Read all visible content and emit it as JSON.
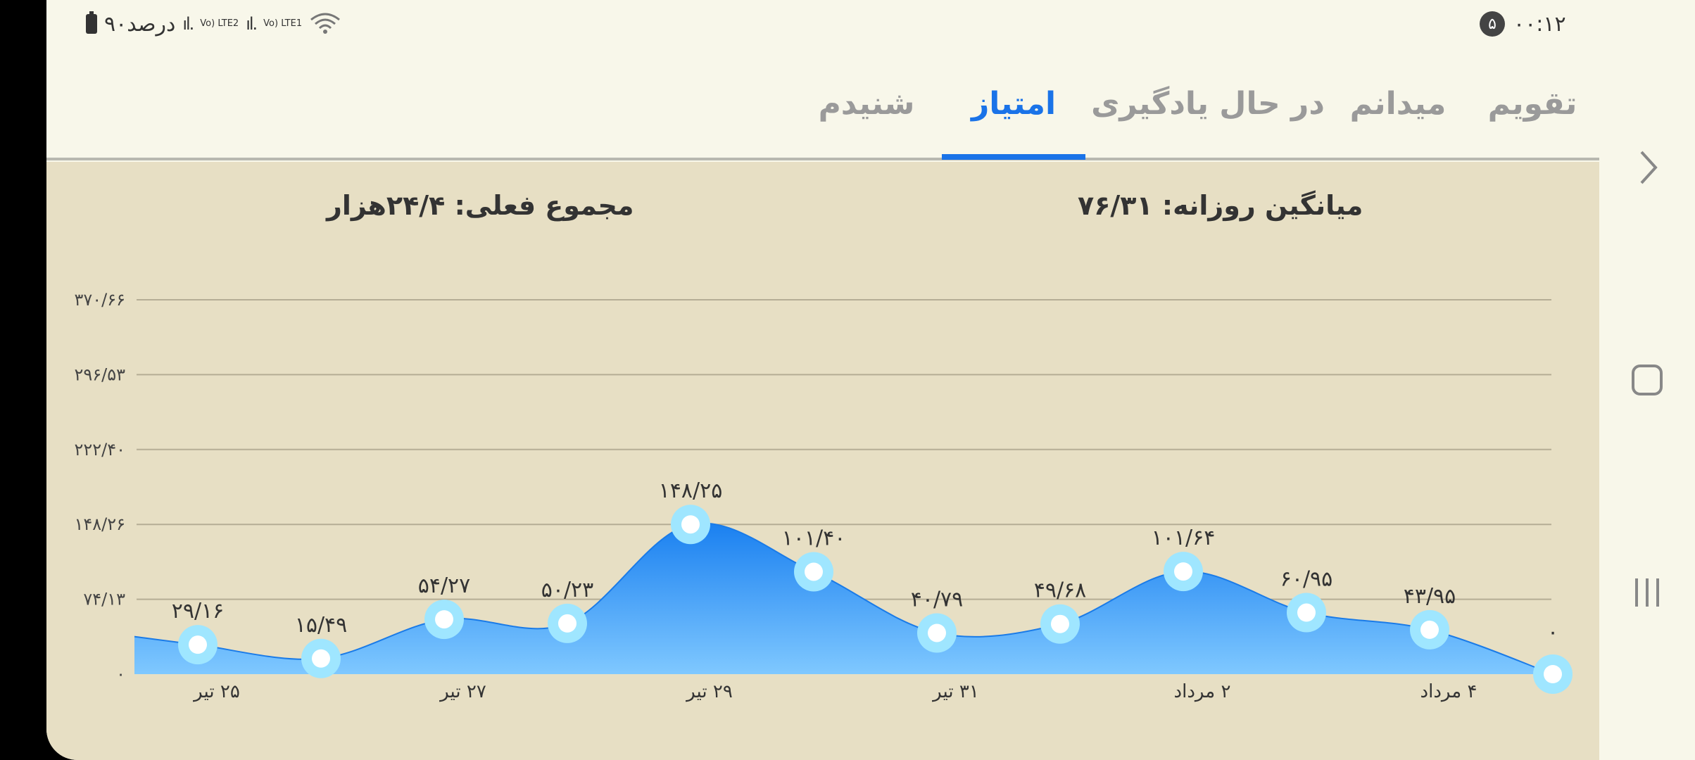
{
  "status_bar": {
    "time": "۰۰:۱۲",
    "notification_count": "۵",
    "battery_text": "۹۰درصد",
    "lte2": "Vo) LTE2",
    "lte1": "Vo) LTE1"
  },
  "tabs": [
    {
      "label": "تقویم",
      "active": false
    },
    {
      "label": "میدانم",
      "active": false
    },
    {
      "label": "در حال یادگیری",
      "active": false
    },
    {
      "label": "امتیاز",
      "active": true
    },
    {
      "label": "شنیدم",
      "active": false
    }
  ],
  "summary": {
    "daily_average": "میانگین روزانه: ۷۶/۳۱",
    "current_total": "مجموع فعلی: ۲۴/۴هزار"
  },
  "chart_data": {
    "type": "area",
    "y_ticks": [
      0,
      74.13,
      148.26,
      222.4,
      296.53,
      370.66
    ],
    "y_tick_labels": [
      "۰",
      "۷۴/۱۳",
      "۱۴۸/۲۶",
      "۲۲۲/۴۰",
      "۲۹۶/۵۳",
      "۳۷۰/۶۶"
    ],
    "ylim": [
      0,
      370.66
    ],
    "x_labels": [
      "۲۵ تیر",
      "۲۷ تیر",
      "۲۹ تیر",
      "۳۱ تیر",
      "۲ مرداد",
      "۴ مرداد"
    ],
    "x_label_index": [
      0,
      2,
      4,
      6,
      8,
      10
    ],
    "values": [
      29.16,
      15.49,
      54.27,
      50.23,
      148.25,
      101.4,
      40.79,
      49.68,
      101.64,
      60.95,
      43.95,
      0
    ],
    "value_labels": [
      "۲۹/۱۶",
      "۱۵/۴۹",
      "۵۴/۲۷",
      "۵۰/۲۳",
      "۱۴۸/۲۵",
      "۱۰۱/۴۰",
      "۴۰/۷۹",
      "۴۹/۶۸",
      "۱۰۱/۶۴",
      "۶۰/۹۵",
      "۴۳/۹۵",
      "۰"
    ],
    "grid": true,
    "colors": {
      "fill_top": "#1a80f0",
      "fill_bottom": "#7fc8ff",
      "line": "#1a7be8",
      "marker_ring": "#9fe6ff",
      "marker_center": "#ffffff"
    }
  },
  "nav": {
    "back_icon": "chevron-right-icon",
    "home_icon": "home-square-icon",
    "recents_icon": "recents-icon"
  }
}
